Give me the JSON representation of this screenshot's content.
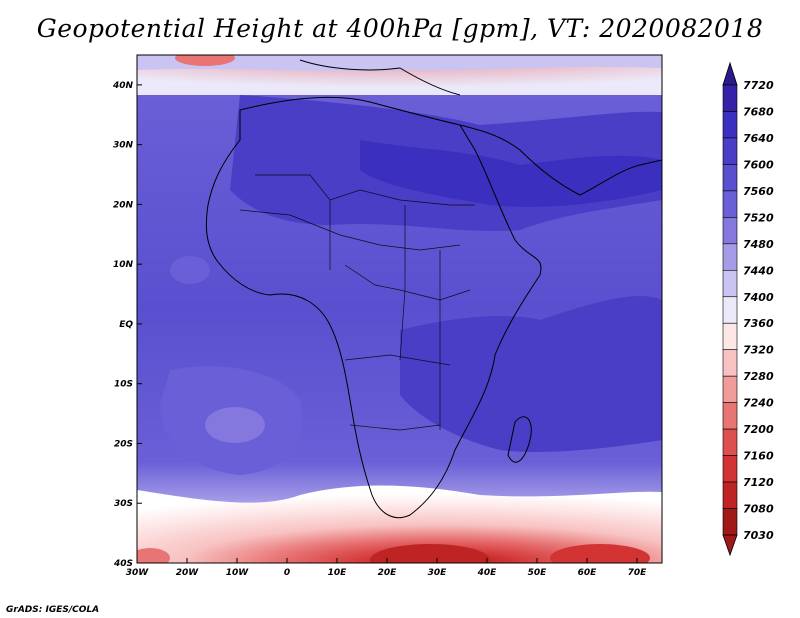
{
  "title": "Geopotential Height at 400hPa [gpm], VT: 2020082018",
  "credit": "GrADS: IGES/COLA",
  "chart_data": {
    "type": "heatmap",
    "variable": "Geopotential height",
    "level": "400hPa",
    "units": "gpm",
    "valid_time": "2020082018",
    "lon_range": [
      -30,
      75
    ],
    "lat_range": [
      -40,
      45
    ],
    "x_ticks": [
      "30W",
      "20W",
      "10W",
      "0",
      "10E",
      "20E",
      "30E",
      "40E",
      "50E",
      "60E",
      "70E"
    ],
    "y_ticks": [
      "40S",
      "30S",
      "20S",
      "10S",
      "EQ",
      "10N",
      "20N",
      "30N",
      "40N"
    ],
    "colorbar": {
      "levels": [
        7720,
        7680,
        7640,
        7600,
        7560,
        7520,
        7480,
        7440,
        7400,
        7360,
        7320,
        7280,
        7240,
        7200,
        7160,
        7120,
        7080,
        7030
      ],
      "colors": [
        "#2a1a8c",
        "#3322a8",
        "#3b2fbf",
        "#4a3dc6",
        "#5a4fcf",
        "#6a5fd6",
        "#8478de",
        "#a59ce8",
        "#c9c4f2",
        "#eceaf9",
        "#fde6e6",
        "#f8c2c2",
        "#f19b9b",
        "#e87474",
        "#de5050",
        "#d23434",
        "#be2424",
        "#a01818"
      ]
    }
  }
}
